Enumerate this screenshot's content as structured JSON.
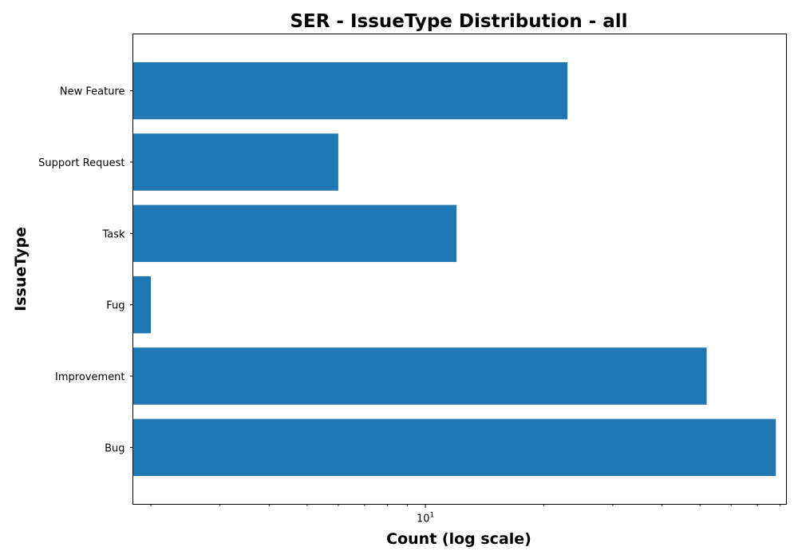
{
  "chart_data": {
    "type": "bar",
    "orientation": "horizontal",
    "title": "SER - IssueType Distribution - all",
    "xlabel": "Count (log scale)",
    "ylabel": "IssueType",
    "xscale": "log",
    "xlim": [
      1.8,
      83
    ],
    "x_major_ticks": [
      {
        "value": 10,
        "base": "10",
        "exponent": "1"
      }
    ],
    "x_minor_ticks": [
      2,
      3,
      4,
      5,
      6,
      7,
      8,
      9,
      20,
      30,
      40,
      50,
      60,
      70,
      80
    ],
    "categories": [
      "New Feature",
      "Support Request",
      "Task",
      "Fug",
      "Improvement",
      "Bug"
    ],
    "values": [
      23,
      6,
      12,
      2,
      52,
      78
    ],
    "bar_color": "#1f77b4",
    "grid": false,
    "legend": false
  }
}
